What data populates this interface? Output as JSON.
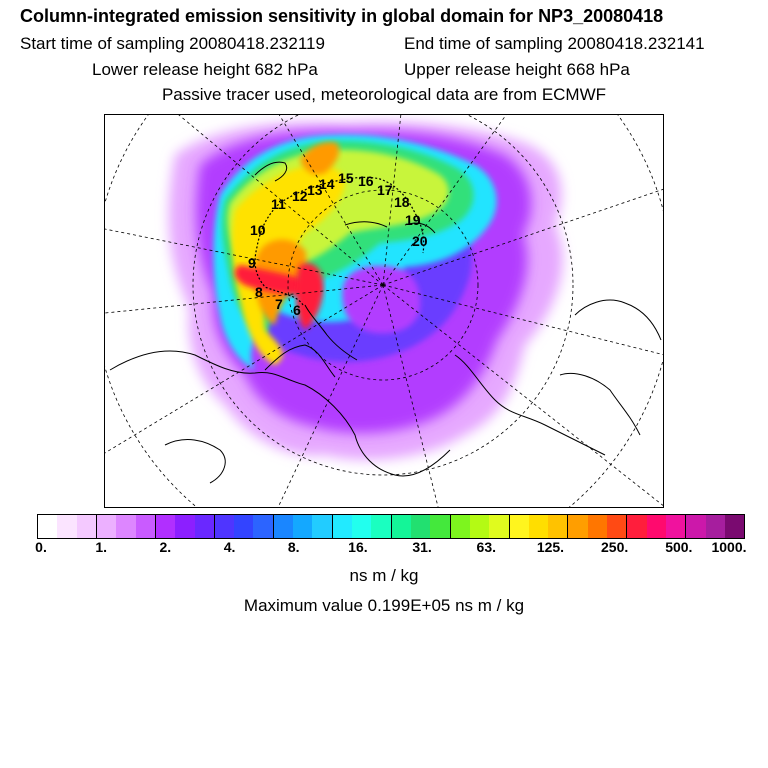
{
  "header": {
    "title": "Column-integrated emission sensitivity in global domain for NP3_20080418",
    "start_time": "Start time of sampling 20080418.232119",
    "end_time": "End time of sampling 20080418.232141",
    "lower_height": "Lower release height  682 hPa",
    "upper_height": "Upper release height  668 hPa",
    "tracer_note": "Passive tracer used, meteorological data are from ECMWF"
  },
  "map": {
    "track_labels": [
      "6",
      "7",
      "8",
      "9",
      "10",
      "11",
      "12",
      "13",
      "14",
      "15",
      "16",
      "17",
      "18",
      "19",
      "20"
    ],
    "field_colors": {
      "lavender": "#e6a8ff",
      "violet": "#b23cff",
      "indigo": "#6a3cff",
      "cyan": "#22e4ff",
      "green": "#33e07a",
      "yellowgreen": "#c8f53a",
      "yellow": "#ffe200",
      "orange": "#ff9a00",
      "red": "#ff1a3a"
    }
  },
  "colorbar": {
    "colors": [
      "#ffffff",
      "#fbe4ff",
      "#f4c9ff",
      "#ecb0ff",
      "#dd86ff",
      "#c95bff",
      "#b12fff",
      "#8c1fff",
      "#6a28ff",
      "#4f35ff",
      "#3344ff",
      "#2c64ff",
      "#1a86ff",
      "#14a8ff",
      "#22ccff",
      "#22eaff",
      "#22ffee",
      "#1affc0",
      "#14f598",
      "#22e070",
      "#44e83c",
      "#7df51e",
      "#b4fa14",
      "#e0fb1e",
      "#fff51e",
      "#ffde00",
      "#ffc200",
      "#ff9e00",
      "#ff7600",
      "#ff4a14",
      "#ff1e3c",
      "#ff0a6e",
      "#f0129e",
      "#cc18aa",
      "#a61e9e",
      "#7a0a70"
    ],
    "tick_labels": [
      "0.",
      "1.",
      "2.",
      "4.",
      "8.",
      "16.",
      "31.",
      "63.",
      "125.",
      "250.",
      "500.",
      "1000."
    ]
  },
  "footer": {
    "units": "ns m / kg",
    "max_value": "Maximum value  0.199E+05 ns m / kg"
  }
}
